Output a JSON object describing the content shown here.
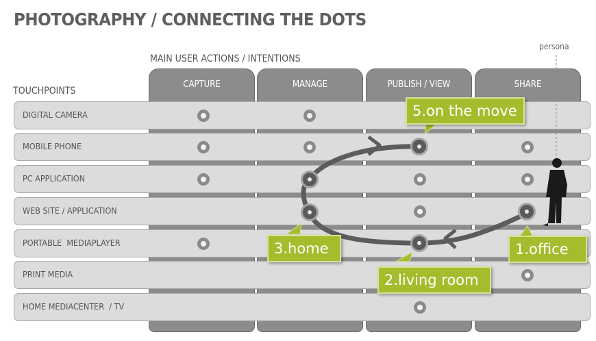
{
  "title": "PHOTOGRAPHY / CONNECTING THE DOTS",
  "subtitle": "MAIN USER ACTIONS / INTENTIONS",
  "touchpoints_label": "TOUCHPOINTS",
  "persona_label": "persona",
  "columns": [
    "CAPTURE",
    "MANAGE",
    "PUBLISH / VIEW",
    "SHARE"
  ],
  "rows": [
    "DIGITAL CAMERA",
    "MOBILE PHONE",
    "PC APPLICATION",
    "WEB SITE / APPLICATION",
    "PORTABLE  MEDIAPLAYER",
    "PRINT MEDIA",
    "HOME MEDIACENTER  / TV"
  ],
  "callouts": [
    "1.office",
    "2.living room",
    "3.home",
    "5.on the move"
  ],
  "colors": {
    "accent": "#a3bd2d",
    "column": "#8c8c8c",
    "row": "#dcdcdc",
    "path": "#5a5a5a"
  }
}
